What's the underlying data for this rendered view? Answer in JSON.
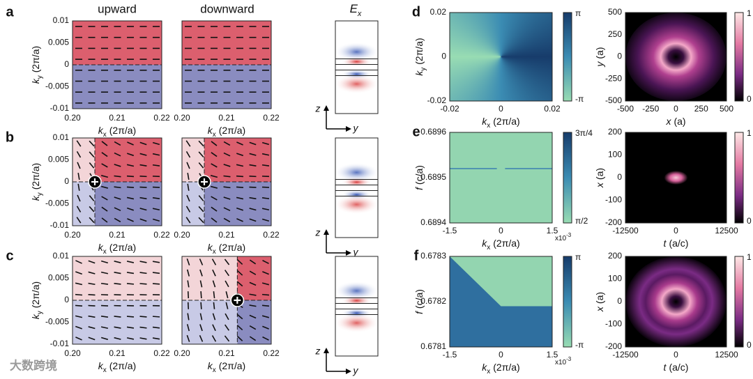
{
  "watermark": "大数跨境",
  "left": {
    "column_titles": [
      "upward",
      "downward"
    ],
    "field_title": {
      "symbol": "E",
      "sub": "x"
    },
    "rows": [
      {
        "label": "a",
        "ylabel": {
          "symbol": "k",
          "sub": "y",
          "unit": "(2π/a)"
        },
        "yticks": [
          "0.01",
          "0.005",
          "0",
          "-0.005",
          "-0.01"
        ],
        "plots": [
          {
            "xticks": [
              "0.20",
              "0.21",
              "0.22"
            ],
            "xlabel": {
              "symbol": "k",
              "sub": "x",
              "unit": "(2π/a)"
            }
          },
          {
            "xticks": [
              "0.20",
              "0.21",
              "0.22"
            ],
            "xlabel": {
              "symbol": "k",
              "sub": "x",
              "unit": "(2π/a)"
            }
          }
        ],
        "field_axes": [
          "z",
          "y"
        ]
      },
      {
        "label": "b",
        "ylabel": {
          "symbol": "k",
          "sub": "y",
          "unit": "(2π/a)"
        },
        "yticks": [
          "0.01",
          "0.005",
          "0",
          "-0.005",
          "-0.01"
        ],
        "plots": [
          {
            "xticks": [
              "0.20",
              "0.21",
              "0.22"
            ],
            "xlabel": {
              "symbol": "k",
              "sub": "x",
              "unit": "(2π/a)"
            }
          },
          {
            "xticks": [
              "0.20",
              "0.21",
              "0.22"
            ],
            "xlabel": {
              "symbol": "k",
              "sub": "x",
              "unit": "(2π/a)"
            }
          }
        ],
        "field_axes": [
          "z",
          "y"
        ]
      },
      {
        "label": "c",
        "ylabel": {
          "symbol": "k",
          "sub": "y",
          "unit": "(2π/a)"
        },
        "yticks": [
          "0.01",
          "0.005",
          "0",
          "-0.005",
          "-0.01"
        ],
        "plots": [
          {
            "xticks": [
              "0.20",
              "0.21",
              "0.22"
            ],
            "xlabel": {
              "symbol": "k",
              "sub": "x",
              "unit": "(2π/a)"
            }
          },
          {
            "xticks": [
              "0.20",
              "0.21",
              "0.22"
            ],
            "xlabel": {
              "symbol": "k",
              "sub": "x",
              "unit": "(2π/a)"
            }
          }
        ],
        "field_axes": [
          "z",
          "y"
        ]
      }
    ]
  },
  "right": {
    "rows": [
      {
        "label": "d",
        "phase": {
          "ylabel": {
            "symbol": "k",
            "sub": "y",
            "unit": "(2π/a)"
          },
          "yticks": [
            "0.02",
            "0",
            "-0.02"
          ],
          "xlabel": {
            "symbol": "k",
            "sub": "x",
            "unit": "(2π/a)"
          },
          "xticks": [
            "-0.02",
            "0",
            "0.02"
          ],
          "colorbar_ticks": [
            "π",
            "-π"
          ]
        },
        "intensity": {
          "ylabel": {
            "symbol": "y",
            "unit": "(a)"
          },
          "yticks": [
            "500",
            "250",
            "0",
            "-250",
            "-500"
          ],
          "xlabel": {
            "symbol": "x",
            "unit": "(a)"
          },
          "xticks": [
            "-500",
            "-250",
            "0",
            "250",
            "500"
          ],
          "colorbar_ticks": [
            "1",
            "0"
          ]
        }
      },
      {
        "label": "e",
        "phase": {
          "ylabel": {
            "symbol": "f",
            "unit": "(c/a)"
          },
          "yticks": [
            "0.6896",
            "0.6895",
            "0.6894"
          ],
          "xlabel": {
            "symbol": "k",
            "sub": "x",
            "unit": "(2π/a)"
          },
          "xticks": [
            "-1.5",
            "0",
            "1.5"
          ],
          "multiplier": {
            "base": "x10",
            "exp": "-3"
          },
          "colorbar_ticks": [
            "3π/4",
            "π/2"
          ]
        },
        "intensity": {
          "ylabel": {
            "symbol": "x",
            "unit": "(a)"
          },
          "yticks": [
            "200",
            "100",
            "0",
            "-100",
            "-200"
          ],
          "xlabel": {
            "symbol": "t",
            "unit": "(a/c)"
          },
          "xticks": [
            "-12500",
            "0",
            "12500"
          ],
          "colorbar_ticks": [
            "1",
            "0"
          ]
        }
      },
      {
        "label": "f",
        "phase": {
          "ylabel": {
            "symbol": "f",
            "unit": "(c/a)"
          },
          "yticks": [
            "0.6783",
            "0.6782",
            "0.6781"
          ],
          "xlabel": {
            "symbol": "k",
            "sub": "x",
            "unit": "(2π/a)"
          },
          "xticks": [
            "-1.5",
            "0",
            "1.5"
          ],
          "multiplier": {
            "base": "x10",
            "exp": "-3"
          },
          "colorbar_ticks": [
            "π",
            "-π"
          ]
        },
        "intensity": {
          "ylabel": {
            "symbol": "x",
            "unit": "(a)"
          },
          "yticks": [
            "200",
            "100",
            "0",
            "-100",
            "-200"
          ],
          "xlabel": {
            "symbol": "t",
            "unit": "(a/c)"
          },
          "xticks": [
            "-12500",
            "0",
            "12500"
          ],
          "colorbar_ticks": [
            "1",
            "0"
          ]
        }
      }
    ]
  }
}
